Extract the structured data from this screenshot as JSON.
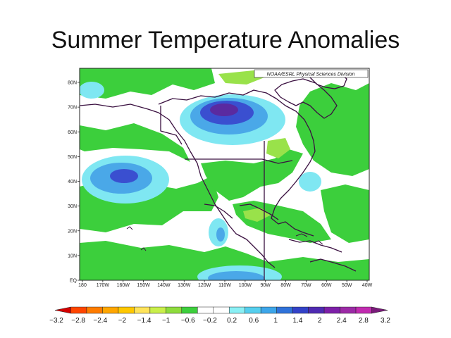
{
  "title": "Summer Temperature Anomalies",
  "map": {
    "credit": "NOAA/ESRL Physical Sciences Division",
    "lat_labels": [
      "EQ",
      "10N",
      "20N",
      "30N",
      "40N",
      "50N",
      "60N",
      "70N",
      "80N"
    ],
    "lon_labels": [
      "180",
      "170W",
      "160W",
      "150W",
      "140W",
      "130W",
      "120W",
      "110W",
      "100W",
      "90W",
      "80W",
      "70W",
      "60W",
      "50W",
      "40W"
    ],
    "colors": {
      "background_neutral": "#ffffff",
      "coast": "#3a1040",
      "weak_positive": "#99e24a",
      "positive": "#3ccf3c",
      "weak_negative": "#7fe7f2",
      "negative": "#4aa8e8",
      "strong_negative": "#3a4fd0",
      "extreme_negative": "#5a2aa0"
    }
  },
  "colorbar": {
    "labels": [
      "-3.2",
      "-2.8",
      "-2.4",
      "-2",
      "-1.4",
      "-1",
      "-0.6",
      "-0.2",
      "0.2",
      "0.6",
      "1",
      "1.4",
      "2",
      "2.4",
      "2.8",
      "3.2"
    ],
    "colors": [
      "#d30000",
      "#ff4500",
      "#ff7c00",
      "#ffa600",
      "#ffc800",
      "#ffe45a",
      "#c9ef4a",
      "#8edc3c",
      "#3dcf3c",
      "#ffffff",
      "#ffffff",
      "#8af0f5",
      "#55cfee",
      "#3da6ea",
      "#2f72da",
      "#3342c8",
      "#4f2ab2",
      "#7d1fa8",
      "#9c2aa6",
      "#c12bb0",
      "#7a1b7a"
    ]
  }
}
